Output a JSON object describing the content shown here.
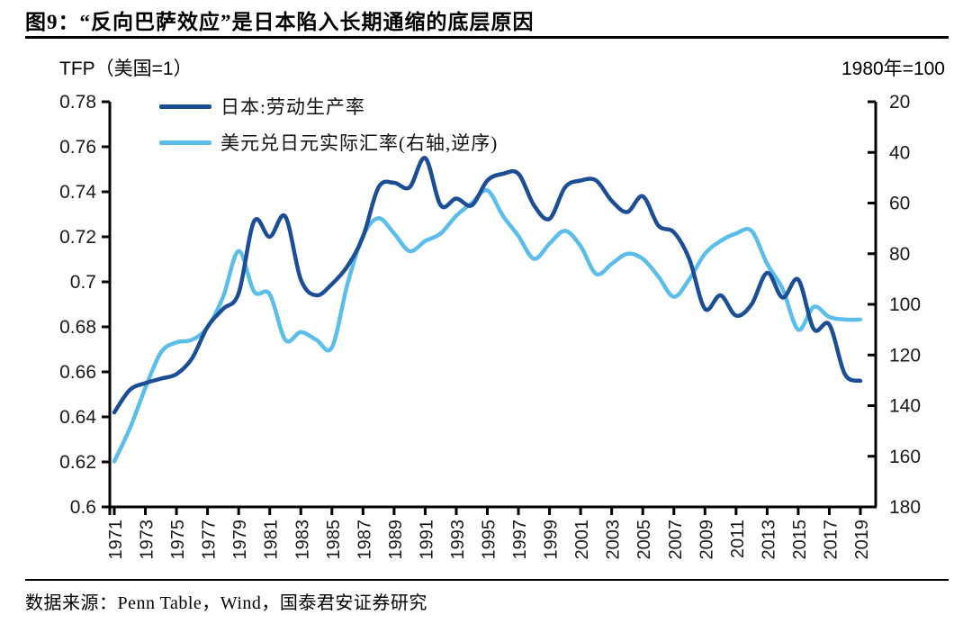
{
  "header": {
    "title": "图9：“反向巴萨效应”是日本陷入长期通缩的底层原因"
  },
  "chart": {
    "left_axis_title": "TFP（美国=1）",
    "right_axis_title": "1980年=100",
    "legend": [
      {
        "label": "日本:劳动生产率",
        "color": "#1b4e95"
      },
      {
        "label": "美元兑日元实际汇率(右轴,逆序)",
        "color": "#5bbde9"
      }
    ]
  },
  "footer": {
    "source": "数据来源：Penn Table，Wind，国泰君安证券研究"
  },
  "colors": {
    "dark_blue_line": "#1b4e95",
    "light_blue_line": "#5bbde9",
    "axis": "#000000",
    "text": "#1a1a1a"
  },
  "chart_data": {
    "type": "line",
    "title": "图9：“反向巴萨效应”是日本陷入长期通缩的底层原因",
    "x": [
      1971,
      1972,
      1973,
      1974,
      1975,
      1976,
      1977,
      1978,
      1979,
      1980,
      1981,
      1982,
      1983,
      1984,
      1985,
      1986,
      1987,
      1988,
      1989,
      1990,
      1991,
      1992,
      1993,
      1994,
      1995,
      1996,
      1997,
      1998,
      1999,
      2000,
      2001,
      2002,
      2003,
      2004,
      2005,
      2006,
      2007,
      2008,
      2009,
      2010,
      2011,
      2012,
      2013,
      2014,
      2015,
      2016,
      2017,
      2018,
      2019
    ],
    "x_tick_years": [
      1971,
      1973,
      1975,
      1977,
      1979,
      1981,
      1983,
      1985,
      1987,
      1989,
      1991,
      1993,
      1995,
      1997,
      1999,
      2001,
      2003,
      2005,
      2007,
      2009,
      2011,
      2013,
      2015,
      2017,
      2019
    ],
    "left_axis": {
      "title": "TFP（美国=1）",
      "min": 0.6,
      "max": 0.78,
      "ticks": [
        0.78,
        0.76,
        0.74,
        0.72,
        0.7,
        0.68,
        0.66,
        0.64,
        0.62,
        0.6
      ],
      "tick_labels": [
        "0.78",
        "0.76",
        "0.74",
        "0.72",
        "0.7",
        "0.68",
        "0.66",
        "0.64",
        "0.62",
        "0.6"
      ]
    },
    "right_axis": {
      "title": "1980年=100",
      "min": 20,
      "max": 180,
      "reversed": true,
      "ticks": [
        20,
        40,
        60,
        80,
        100,
        120,
        140,
        160,
        180
      ],
      "tick_labels": [
        "20",
        "40",
        "60",
        "80",
        "100",
        "120",
        "140",
        "160",
        "180"
      ]
    },
    "series": [
      {
        "name": "日本:劳动生产率",
        "axis": "left",
        "color": "#1b4e95",
        "values": [
          0.642,
          0.652,
          0.655,
          0.657,
          0.659,
          0.666,
          0.68,
          0.688,
          0.695,
          0.727,
          0.72,
          0.729,
          0.701,
          0.694,
          0.699,
          0.707,
          0.72,
          0.742,
          0.744,
          0.742,
          0.755,
          0.734,
          0.737,
          0.734,
          0.745,
          0.748,
          0.748,
          0.734,
          0.728,
          0.742,
          0.745,
          0.745,
          0.736,
          0.731,
          0.738,
          0.725,
          0.722,
          0.71,
          0.688,
          0.694,
          0.685,
          0.69,
          0.704,
          0.693,
          0.701,
          0.679,
          0.681,
          0.659,
          0.656
        ]
      },
      {
        "name": "美元兑日元实际汇率(右轴,逆序)",
        "axis": "right",
        "color": "#5bbde9",
        "values": [
          162,
          149,
          133,
          119,
          115,
          114,
          109,
          97,
          79,
          95,
          96,
          114,
          111,
          114,
          117,
          92,
          73,
          66,
          72,
          79,
          75,
          72,
          65,
          60,
          55,
          65,
          73,
          82,
          76,
          71,
          77,
          88,
          84,
          80,
          82,
          89,
          97,
          90,
          80,
          75,
          72,
          71,
          84,
          94,
          110,
          101,
          105,
          106,
          106
        ]
      }
    ],
    "legend_position": "top-left-inside",
    "grid": false
  }
}
